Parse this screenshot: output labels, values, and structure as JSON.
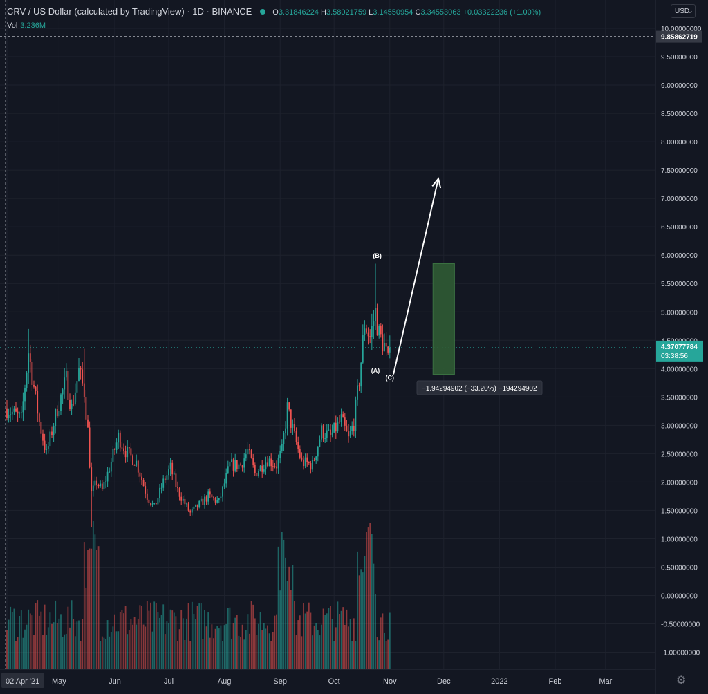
{
  "header": {
    "symbol_title": "CRV / US Dollar (calculated by TradingView) · 1D · BINANCE",
    "open_label": "O",
    "open": "3.31846224",
    "high_label": "H",
    "high": "3.58021759",
    "low_label": "L",
    "low": "3.14550954",
    "close_label": "C",
    "close": "3.34553063",
    "change": "+0.03322236 (+1.00%)",
    "vol_label": "Vol",
    "vol_value": "3.236M",
    "currency": "USD"
  },
  "colors": {
    "background": "#131722",
    "up": "#26a69a",
    "down": "#ef5350",
    "grid": "#1e222d",
    "axis_text": "#d1d4dc",
    "target_box": "#2f5b34"
  },
  "icons": {
    "status": "green-dot-icon",
    "currency_dropdown": "chevron-down-icon",
    "settings": "gear-icon"
  },
  "chart_data": {
    "type": "candlestick",
    "title": "CRV / US Dollar (calculated by TradingView)",
    "timeframe": "1D",
    "exchange": "BINANCE",
    "y_ticks": [
      "10.00000000",
      "9.50000000",
      "9.00000000",
      "8.50000000",
      "8.00000000",
      "7.50000000",
      "7.00000000",
      "6.50000000",
      "6.00000000",
      "5.50000000",
      "5.00000000",
      "4.50000000",
      "4.00000000",
      "3.50000000",
      "3.00000000",
      "2.50000000",
      "2.00000000",
      "1.50000000",
      "1.00000000",
      "0.50000000",
      "0.00000000",
      "-0.50000000",
      "-1.00000000"
    ],
    "y_tick_values": [
      10,
      9.5,
      9,
      8.5,
      8,
      7.5,
      7,
      6.5,
      6,
      5.5,
      5,
      4.5,
      4,
      3.5,
      3,
      2.5,
      2,
      1.5,
      1,
      0.5,
      0,
      -0.5,
      -1
    ],
    "x_ticks": [
      "02 Apr '21",
      "May",
      "Jun",
      "Jul",
      "Aug",
      "Sep",
      "Oct",
      "Nov",
      "Dec",
      "2022",
      "Feb",
      "Mar"
    ],
    "x_tick_days": [
      0,
      29,
      60,
      90,
      121,
      152,
      182,
      213,
      243,
      274,
      305,
      333
    ],
    "crosshair_label": "9.85862719",
    "crosshair_value": 9.85862719,
    "last_price_label": "4.37077784",
    "last_price": 4.37077784,
    "countdown": "03:38:56",
    "measure_label": "−1.94294902 (−33.20%) −194294902",
    "wave_labels": [
      {
        "text": "(B)",
        "day": 206,
        "price": 6.0
      },
      {
        "text": "(A)",
        "day": 205,
        "price": 3.98
      },
      {
        "text": "(C)",
        "day": 213,
        "price": 3.85
      }
    ],
    "target_box": {
      "day_start": 237,
      "day_end": 249,
      "price_low": 3.9,
      "price_high": 5.85
    },
    "arrow": {
      "from_day": 215,
      "from_price": 3.9,
      "to_day": 240,
      "to_price": 7.35
    },
    "anchors": [
      {
        "day": 0,
        "price": 3.3
      },
      {
        "day": 8,
        "price": 3.1
      },
      {
        "day": 12,
        "price": 4.3
      },
      {
        "day": 18,
        "price": 3.05
      },
      {
        "day": 22,
        "price": 2.5
      },
      {
        "day": 28,
        "price": 3.3
      },
      {
        "day": 33,
        "price": 3.8
      },
      {
        "day": 36,
        "price": 3.3
      },
      {
        "day": 40,
        "price": 3.95
      },
      {
        "day": 43,
        "price": 3.6
      },
      {
        "day": 45,
        "price": 2.9
      },
      {
        "day": 47,
        "price": 1.8
      },
      {
        "day": 50,
        "price": 2.0
      },
      {
        "day": 53,
        "price": 1.85
      },
      {
        "day": 57,
        "price": 2.25
      },
      {
        "day": 62,
        "price": 2.8
      },
      {
        "day": 66,
        "price": 2.55
      },
      {
        "day": 72,
        "price": 2.35
      },
      {
        "day": 78,
        "price": 1.75
      },
      {
        "day": 82,
        "price": 1.55
      },
      {
        "day": 87,
        "price": 2.0
      },
      {
        "day": 91,
        "price": 2.25
      },
      {
        "day": 95,
        "price": 1.85
      },
      {
        "day": 102,
        "price": 1.45
      },
      {
        "day": 107,
        "price": 1.6
      },
      {
        "day": 112,
        "price": 1.75
      },
      {
        "day": 118,
        "price": 1.65
      },
      {
        "day": 124,
        "price": 2.3
      },
      {
        "day": 130,
        "price": 2.3
      },
      {
        "day": 134,
        "price": 2.55
      },
      {
        "day": 138,
        "price": 2.15
      },
      {
        "day": 145,
        "price": 2.4
      },
      {
        "day": 150,
        "price": 2.3
      },
      {
        "day": 153,
        "price": 2.55
      },
      {
        "day": 156,
        "price": 3.3
      },
      {
        "day": 160,
        "price": 2.8
      },
      {
        "day": 164,
        "price": 2.35
      },
      {
        "day": 170,
        "price": 2.3
      },
      {
        "day": 175,
        "price": 2.9
      },
      {
        "day": 180,
        "price": 2.8
      },
      {
        "day": 186,
        "price": 3.1
      },
      {
        "day": 190,
        "price": 2.75
      },
      {
        "day": 193,
        "price": 3.05
      },
      {
        "day": 196,
        "price": 3.8
      },
      {
        "day": 199,
        "price": 4.8
      },
      {
        "day": 202,
        "price": 4.55
      },
      {
        "day": 205,
        "price": 5.0
      },
      {
        "day": 207,
        "price": 4.6
      },
      {
        "day": 210,
        "price": 4.4
      },
      {
        "day": 212,
        "price": 4.1
      },
      {
        "day": 213,
        "price": 4.37
      }
    ],
    "last_day": 213,
    "volume_axis": "shared"
  }
}
